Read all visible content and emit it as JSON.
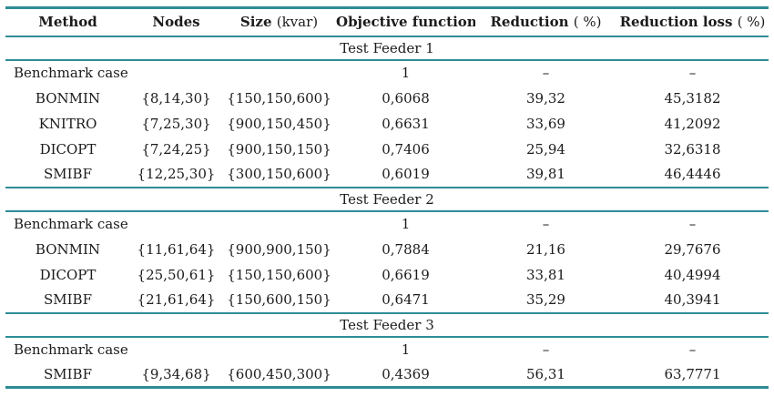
{
  "accent_color": "#2d8c96",
  "table": {
    "columns": [
      {
        "key": "method",
        "label_bold": "Method",
        "label_normal": ""
      },
      {
        "key": "nodes",
        "label_bold": "Nodes",
        "label_normal": ""
      },
      {
        "key": "size",
        "label_bold": "Size",
        "label_normal": "(kvar)"
      },
      {
        "key": "objective",
        "label_bold": "Objective function",
        "label_normal": ""
      },
      {
        "key": "reduction",
        "label_bold": "Reduction",
        "label_normal": "( %)"
      },
      {
        "key": "reduction_loss",
        "label_bold": "Reduction loss",
        "label_normal": "( %)"
      }
    ],
    "sections": [
      {
        "title": "Test Feeder 1",
        "rows": [
          {
            "benchmark": true,
            "method": "Benchmark case",
            "nodes": "",
            "size": "",
            "objective": "1",
            "reduction": "–",
            "reduction_loss": "–"
          },
          {
            "benchmark": false,
            "method": "BONMIN",
            "nodes": "{8,14,30}",
            "size": "{150,150,600}",
            "objective": "0,6068",
            "reduction": "39,32",
            "reduction_loss": "45,3182"
          },
          {
            "benchmark": false,
            "method": "KNITRO",
            "nodes": "{7,25,30}",
            "size": "{900,150,450}",
            "objective": "0,6631",
            "reduction": "33,69",
            "reduction_loss": "41,2092"
          },
          {
            "benchmark": false,
            "method": "DICOPT",
            "nodes": "{7,24,25}",
            "size": "{900,150,150}",
            "objective": "0,7406",
            "reduction": "25,94",
            "reduction_loss": "32,6318"
          },
          {
            "benchmark": false,
            "method": "SMIBF",
            "nodes": "{12,25,30}",
            "size": "{300,150,600}",
            "objective": "0,6019",
            "reduction": "39,81",
            "reduction_loss": "46,4446"
          }
        ]
      },
      {
        "title": "Test Feeder 2",
        "rows": [
          {
            "benchmark": true,
            "method": "Benchmark case",
            "nodes": "",
            "size": "",
            "objective": "1",
            "reduction": "–",
            "reduction_loss": "–"
          },
          {
            "benchmark": false,
            "method": "BONMIN",
            "nodes": "{11,61,64}",
            "size": "{900,900,150}",
            "objective": "0,7884",
            "reduction": "21,16",
            "reduction_loss": "29,7676"
          },
          {
            "benchmark": false,
            "method": "DICOPT",
            "nodes": "{25,50,61}",
            "size": "{150,150,600}",
            "objective": "0,6619",
            "reduction": "33,81",
            "reduction_loss": "40,4994"
          },
          {
            "benchmark": false,
            "method": "SMIBF",
            "nodes": "{21,61,64}",
            "size": "{150,600,150}",
            "objective": "0,6471",
            "reduction": "35,29",
            "reduction_loss": "40,3941"
          }
        ]
      },
      {
        "title": "Test Feeder 3",
        "rows": [
          {
            "benchmark": true,
            "method": "Benchmark case",
            "nodes": "",
            "size": "",
            "objective": "1",
            "reduction": "–",
            "reduction_loss": "–"
          },
          {
            "benchmark": false,
            "method": "SMIBF",
            "nodes": "{9,34,68}",
            "size": "{600,450,300}",
            "objective": "0,4369",
            "reduction": "56,31",
            "reduction_loss": "63,7771"
          }
        ]
      }
    ]
  }
}
